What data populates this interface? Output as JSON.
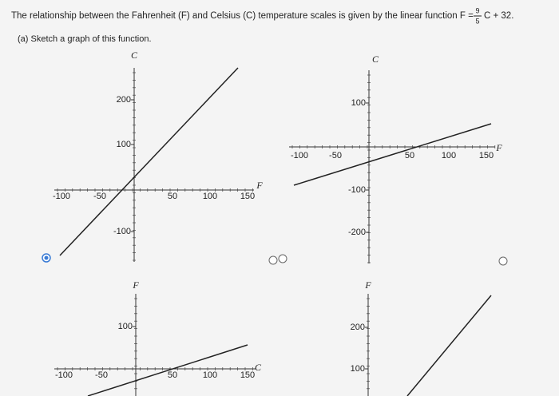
{
  "header": {
    "text_before": "The relationship between the Fahrenheit (F) and Celsius (C) temperature scales is given by the linear function F =",
    "numerator": "9",
    "denominator": "5",
    "text_after": "C + 32."
  },
  "part_a": "(a)  Sketch a graph of this function.",
  "graphs": [
    {
      "y_axis_label": "C",
      "x_axis_label": "F",
      "x_tick_labels": [
        "-100",
        "-50",
        "50",
        "100",
        "150"
      ],
      "y_tick_labels": [
        "200",
        "100",
        "-100"
      ]
    },
    {
      "y_axis_label": "C",
      "x_axis_label": "F",
      "x_tick_labels": [
        "-100",
        "-50",
        "50",
        "100",
        "150"
      ],
      "y_tick_labels": [
        "100",
        "-100",
        "-200"
      ]
    },
    {
      "y_axis_label": "F",
      "x_axis_label": "C",
      "x_tick_labels": [
        "-100",
        "-50",
        "50",
        "100",
        "150"
      ],
      "y_tick_labels": [
        "100"
      ]
    },
    {
      "y_axis_label": "F",
      "y_tick_labels": [
        "200",
        "100"
      ]
    }
  ]
}
